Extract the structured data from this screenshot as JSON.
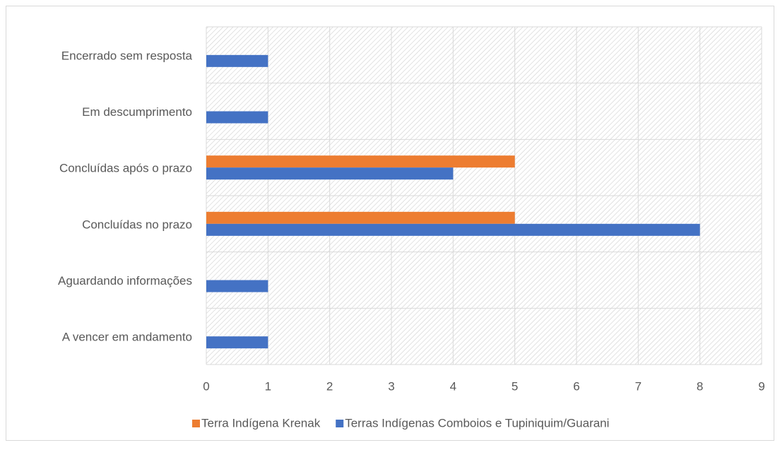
{
  "chart_data": {
    "type": "bar",
    "orientation": "horizontal",
    "categories": [
      "Encerrado sem resposta",
      "Em descumprimento",
      "Concluídas após o prazo",
      "Concluídas no prazo",
      "Aguardando informações",
      "A vencer em andamento"
    ],
    "series": [
      {
        "name": "Terra Indígena Krenak",
        "color": "#ED7D31",
        "values": [
          null,
          null,
          5,
          5,
          null,
          null
        ]
      },
      {
        "name": "Terras Indígenas Comboios e Tupiniquim/Guarani",
        "color": "#4472C4",
        "values": [
          1,
          1,
          4,
          8,
          1,
          1
        ]
      }
    ],
    "xlim": [
      0,
      9
    ],
    "xticks": [
      0,
      1,
      2,
      3,
      4,
      5,
      6,
      7,
      8,
      9
    ],
    "grid": true,
    "legend": "bottom"
  }
}
